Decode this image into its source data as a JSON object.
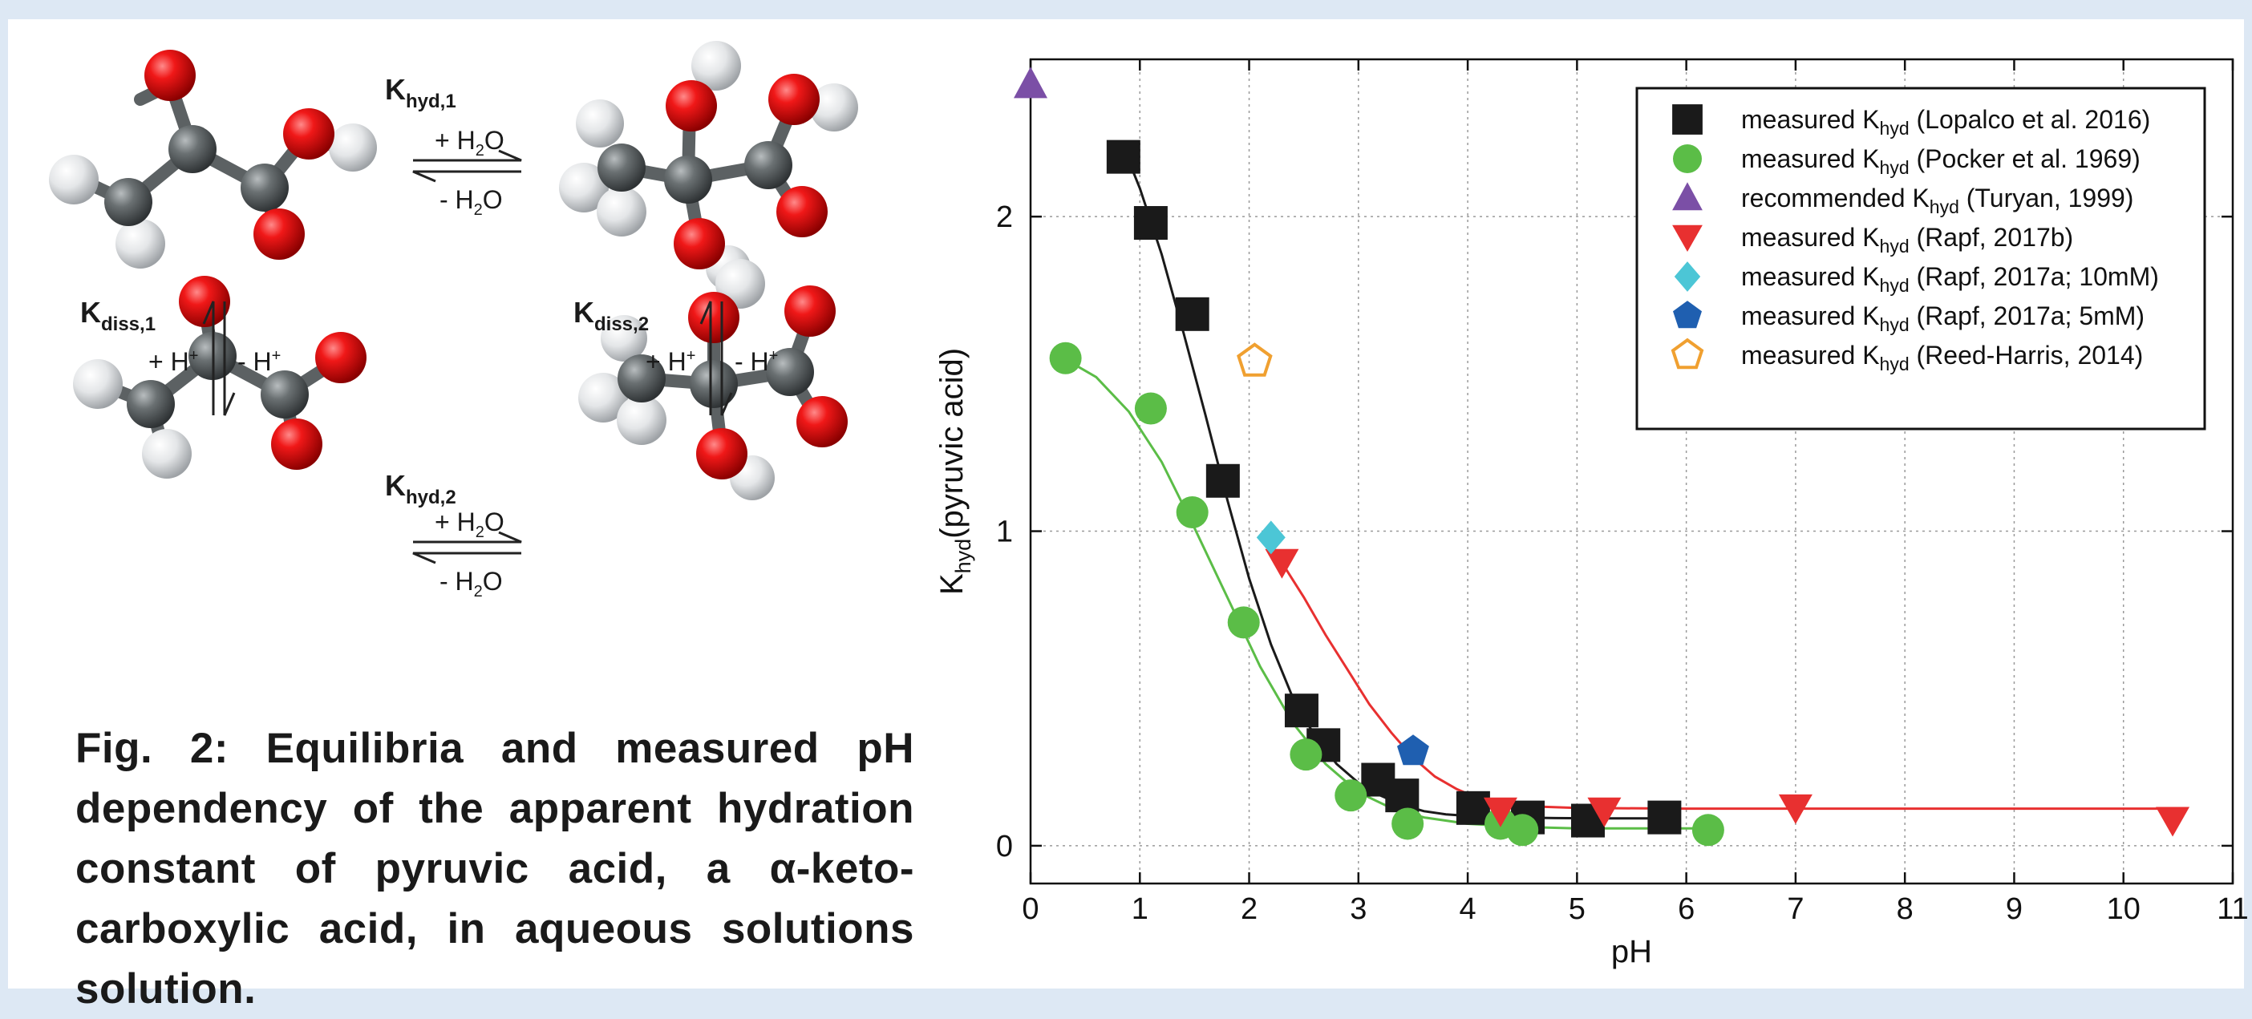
{
  "scheme": {
    "khyd1_main": "K",
    "khyd1_sub": "hyd,1",
    "khyd2_main": "K",
    "khyd2_sub": "hyd,2",
    "kdiss1_main": "K",
    "kdiss1_sub": "diss,1",
    "kdiss2_main": "K",
    "kdiss2_sub": "diss,2",
    "plus_water_a": "+ H",
    "water_sub": "2",
    "plus_water_b": "O",
    "minus_water_a": "- H",
    "minus_water_b": "O",
    "plus_proton": "+ H",
    "minus_proton": "- H",
    "proton_sup": "+"
  },
  "caption": "Fig. 2: Equilibria and measured pH dependency of the apparent hydration constant of pyruvic acid, a α-keto-carboxylic acid, in aqueous solutions solution.",
  "chart_data": {
    "type": "scatter",
    "xlabel": "pH",
    "ylabel_main": "K",
    "ylabel_sub": "hyd",
    "ylabel_rest": "(pyruvic acid)",
    "xlim": [
      0,
      11
    ],
    "ylim": [
      -0.12,
      2.5
    ],
    "xticks": [
      0,
      1,
      2,
      3,
      4,
      5,
      6,
      7,
      8,
      9,
      10,
      11
    ],
    "yticks": [
      0,
      1,
      2
    ],
    "grid": true,
    "legend_position": "top-right",
    "series": [
      {
        "legend_prefix": "measured K",
        "legend_sub": "hyd",
        "legend_suffix": "(Lopalco et al. 2016)",
        "marker": "square",
        "color": "#1a1a1a",
        "filled": true,
        "x": [
          0.85,
          1.1,
          1.48,
          1.76,
          2.48,
          2.68,
          3.18,
          3.4,
          4.05,
          4.55,
          5.1,
          5.8
        ],
        "y": [
          2.19,
          1.98,
          1.69,
          1.16,
          0.43,
          0.32,
          0.21,
          0.16,
          0.12,
          0.09,
          0.08,
          0.09
        ]
      },
      {
        "legend_prefix": "measured K",
        "legend_sub": "hyd",
        "legend_suffix": "(Pocker et al. 1969)",
        "marker": "circle",
        "color": "#5bbd47",
        "filled": true,
        "x": [
          0.32,
          1.1,
          1.48,
          1.95,
          2.52,
          2.93,
          3.45,
          4.3,
          4.5,
          6.2
        ],
        "y": [
          1.55,
          1.39,
          1.06,
          0.71,
          0.29,
          0.16,
          0.07,
          0.07,
          0.05,
          0.05
        ]
      },
      {
        "legend_prefix": "recommended K",
        "legend_sub": "hyd",
        "legend_suffix": "(Turyan, 1999)",
        "marker": "triangle-up",
        "color": "#7b4fa6",
        "filled": true,
        "x": [
          0.0
        ],
        "y": [
          2.42
        ]
      },
      {
        "legend_prefix": "measured K",
        "legend_sub": "hyd",
        "legend_suffix": "(Rapf, 2017b)",
        "marker": "triangle-down",
        "color": "#e83030",
        "filled": true,
        "x": [
          2.3,
          4.3,
          5.25,
          7.0,
          10.45
        ],
        "y": [
          0.9,
          0.11,
          0.11,
          0.12,
          0.08
        ]
      },
      {
        "legend_prefix": "measured K",
        "legend_sub": "hyd",
        "legend_suffix": "(Rapf, 2017a; 10mM)",
        "marker": "diamond",
        "color": "#4cc6d6",
        "filled": true,
        "x": [
          2.2
        ],
        "y": [
          0.98
        ]
      },
      {
        "legend_prefix": "measured K",
        "legend_sub": "hyd",
        "legend_suffix": "(Rapf, 2017a; 5mM)",
        "marker": "pentagon",
        "color": "#1f5fb0",
        "filled": true,
        "x": [
          3.5
        ],
        "y": [
          0.3
        ]
      },
      {
        "legend_prefix": "measured K",
        "legend_sub": "hyd",
        "legend_suffix": "(Reed-Harris, 2014)",
        "marker": "pentagon",
        "color": "#f0a030",
        "filled": false,
        "x": [
          2.05
        ],
        "y": [
          1.54
        ]
      }
    ],
    "fit_curves": [
      {
        "color": "#1a1a1a",
        "x": [
          0.85,
          1.0,
          1.2,
          1.4,
          1.6,
          1.8,
          2.0,
          2.2,
          2.4,
          2.6,
          2.8,
          3.0,
          3.2,
          3.4,
          3.6,
          3.8,
          4.0,
          4.4,
          4.8,
          5.2,
          5.8
        ],
        "y": [
          2.22,
          2.09,
          1.88,
          1.63,
          1.37,
          1.1,
          0.85,
          0.64,
          0.47,
          0.35,
          0.26,
          0.2,
          0.16,
          0.13,
          0.11,
          0.1,
          0.095,
          0.09,
          0.088,
          0.087,
          0.087
        ]
      },
      {
        "color": "#5bbd47",
        "x": [
          0.3,
          0.6,
          0.9,
          1.2,
          1.5,
          1.8,
          2.1,
          2.4,
          2.7,
          3.0,
          3.3,
          3.6,
          4.0,
          4.5,
          5.0,
          5.5,
          6.2
        ],
        "y": [
          1.55,
          1.49,
          1.38,
          1.22,
          1.01,
          0.79,
          0.57,
          0.39,
          0.26,
          0.17,
          0.12,
          0.09,
          0.07,
          0.06,
          0.055,
          0.055,
          0.055
        ]
      },
      {
        "color": "#e83030",
        "x": [
          2.3,
          2.5,
          2.7,
          2.9,
          3.1,
          3.3,
          3.5,
          3.7,
          3.9,
          4.1,
          4.3,
          4.6,
          5.0,
          6.0,
          7.0,
          8.5,
          10.45
        ],
        "y": [
          0.9,
          0.79,
          0.67,
          0.56,
          0.45,
          0.36,
          0.28,
          0.22,
          0.18,
          0.15,
          0.135,
          0.125,
          0.12,
          0.118,
          0.118,
          0.118,
          0.118
        ]
      }
    ]
  }
}
